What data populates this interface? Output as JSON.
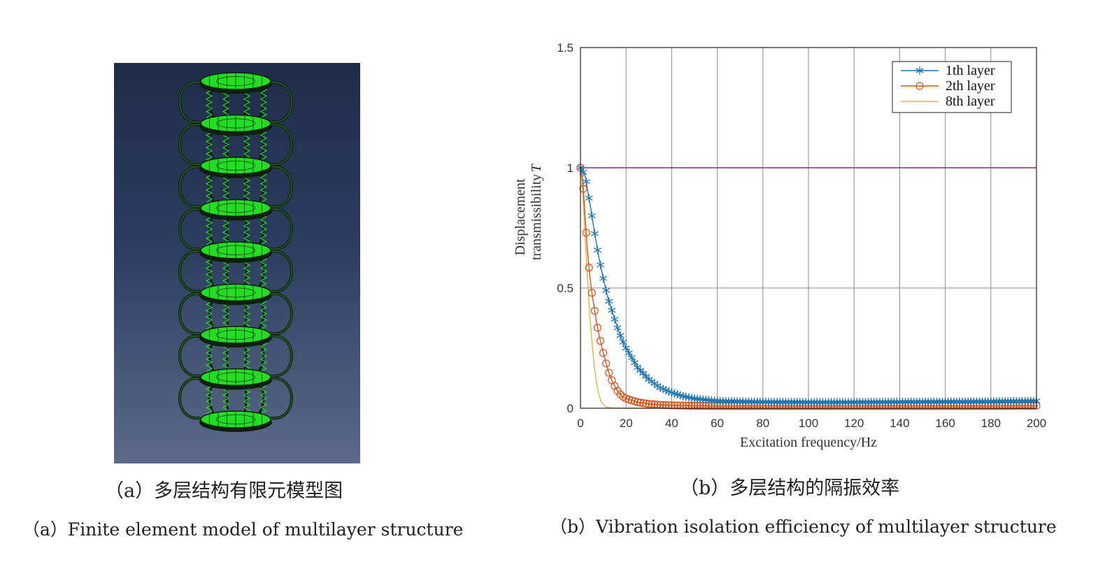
{
  "panel_a": {
    "caption_zh": "（a）多层结构有限元模型图",
    "caption_en": "（a）Finite element model of multilayer structure",
    "layers": 8
  },
  "panel_b": {
    "caption_zh": "（b）多层结构的隔振效率",
    "caption_en": "（b）Vibration isolation efficiency of multilayer structure"
  },
  "colors": {
    "series_1": "#1f77b4",
    "series_2": "#d95319",
    "series_3": "#e6b43a",
    "reference": "#7e2f8e",
    "fe_green": "#22dd22",
    "fe_background_top": "#1e2c48",
    "fe_background_bottom": "#5a6a88"
  },
  "chart_data": {
    "type": "line",
    "title": "",
    "xlabel": "Excitation frequency/Hz",
    "ylabel_line1": "Displacement",
    "ylabel_line2": "transmissibility",
    "ylabel_symbol": "T",
    "xlim": [
      0,
      200
    ],
    "ylim": [
      0,
      1.5
    ],
    "xticks": [
      0,
      20,
      40,
      60,
      80,
      100,
      120,
      140,
      160,
      180,
      200
    ],
    "yticks": [
      0,
      0.5,
      1,
      1.5
    ],
    "ytick_labels": [
      "0",
      "0.5",
      "1",
      "1.5"
    ],
    "grid": true,
    "legend_position": "top-right",
    "series": [
      {
        "name": "1th layer",
        "marker": "asterisk",
        "x": [
          0,
          2,
          4,
          6,
          8,
          10,
          12,
          14,
          16,
          18,
          20,
          25,
          30,
          35,
          40,
          45,
          50,
          55,
          60,
          70,
          80,
          100,
          120,
          140,
          160,
          180,
          200
        ],
        "y": [
          1.0,
          0.97,
          0.86,
          0.74,
          0.63,
          0.54,
          0.46,
          0.4,
          0.34,
          0.29,
          0.25,
          0.17,
          0.12,
          0.085,
          0.065,
          0.05,
          0.04,
          0.035,
          0.03,
          0.028,
          0.026,
          0.025,
          0.025,
          0.026,
          0.027,
          0.028,
          0.03
        ]
      },
      {
        "name": "2th layer",
        "marker": "circle",
        "x": [
          0,
          1,
          2,
          3,
          4,
          5,
          6,
          7,
          8,
          9,
          10,
          12,
          14,
          16,
          18,
          20,
          25,
          30,
          35,
          40,
          50,
          60,
          80,
          100,
          120,
          140,
          160,
          180,
          200
        ],
        "y": [
          1.0,
          0.95,
          0.8,
          0.66,
          0.56,
          0.48,
          0.42,
          0.36,
          0.31,
          0.27,
          0.23,
          0.16,
          0.11,
          0.075,
          0.052,
          0.04,
          0.025,
          0.018,
          0.014,
          0.012,
          0.01,
          0.009,
          0.009,
          0.009,
          0.009,
          0.009,
          0.009,
          0.009,
          0.01
        ]
      },
      {
        "name": "8th layer",
        "marker": "none",
        "x": [
          0,
          1,
          2,
          3,
          4,
          5,
          6,
          7,
          8,
          9,
          10,
          11,
          12,
          14,
          20,
          40,
          200
        ],
        "y": [
          1.0,
          0.9,
          0.72,
          0.55,
          0.4,
          0.28,
          0.18,
          0.11,
          0.06,
          0.03,
          0.015,
          0.007,
          0.003,
          0.001,
          0.0,
          0.0,
          0.0
        ]
      },
      {
        "name": "",
        "marker": "none",
        "x": [
          0,
          200
        ],
        "y": [
          1.0,
          1.0
        ]
      }
    ]
  }
}
